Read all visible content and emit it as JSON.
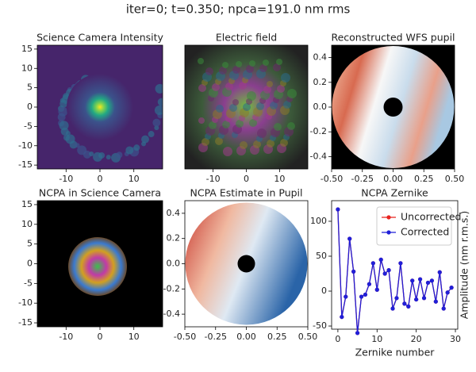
{
  "title": "iter=0; t=0.350; npca=191.0 nm rms",
  "chart_data": [
    {
      "type": "image",
      "title": "Science Camera Intensity",
      "xlim": [
        -18.5,
        18.5
      ],
      "ylim": [
        -16,
        16
      ],
      "xticks": [
        -10,
        0,
        10
      ],
      "yticks": [
        15,
        10,
        5,
        0,
        -5,
        -10,
        -15
      ]
    },
    {
      "type": "image",
      "title": "Electric field",
      "xlim": [
        -18.5,
        18.5
      ],
      "ylim": [
        -16,
        16
      ],
      "xticks": [
        -10,
        0,
        10
      ]
    },
    {
      "type": "image",
      "title": "Reconstructed WFS pupil",
      "xlim": [
        -0.5,
        0.5
      ],
      "ylim": [
        -0.5,
        0.5
      ],
      "xticks": [
        {
          "value": -0.5,
          "label": "-0.50"
        },
        {
          "value": -0.25,
          "label": "-0.25"
        },
        {
          "value": 0,
          "label": "0.00"
        },
        {
          "value": 0.25,
          "label": "0.25"
        },
        {
          "value": 0.5,
          "label": "0.50"
        }
      ],
      "yticks": [
        0.4,
        0.2,
        {
          "value": 0,
          "label": "0.0"
        },
        -0.2,
        -0.4
      ]
    },
    {
      "type": "image",
      "title": "NCPA in Science Camera",
      "xlim": [
        -18.5,
        18.5
      ],
      "ylim": [
        -16,
        16
      ],
      "xticks": [
        -10,
        0,
        10
      ],
      "yticks": [
        15,
        10,
        5,
        0,
        -5,
        -10,
        -15
      ]
    },
    {
      "type": "image",
      "title": "NCPA Estimate in Pupil",
      "xlim": [
        -0.5,
        0.5
      ],
      "ylim": [
        -0.5,
        0.5
      ],
      "xticks": [
        {
          "value": -0.5,
          "label": "-0.50"
        },
        {
          "value": -0.25,
          "label": "-0.25"
        },
        {
          "value": 0,
          "label": "0.00"
        },
        {
          "value": 0.25,
          "label": "0.25"
        },
        {
          "value": 0.5,
          "label": "0.50"
        }
      ],
      "yticks": [
        0.4,
        0.2,
        {
          "value": 0,
          "label": "0.0"
        },
        -0.2,
        -0.4
      ]
    },
    {
      "type": "line",
      "title": "NCPA Zernike",
      "x_label": "Zernike number",
      "y_label": "Amplitude (nm r.m.s.)",
      "xlim": [
        -1.6,
        30.6
      ],
      "ylim": [
        -54.5,
        129.5
      ],
      "xticks": [
        0,
        10,
        20,
        30
      ],
      "yticks": [
        -50,
        0,
        50,
        100
      ],
      "legend": "upper right",
      "x": [
        0,
        1,
        2,
        3,
        4,
        5,
        6,
        7,
        8,
        9,
        10,
        11,
        12,
        13,
        14,
        15,
        16,
        17,
        18,
        19,
        20,
        21,
        22,
        23,
        24,
        25,
        26,
        27,
        28,
        29
      ],
      "series": [
        {
          "name": "Uncorrected",
          "color": "#e8231f",
          "values": [
            117,
            -37,
            -8,
            75,
            28,
            -60,
            -8,
            -5,
            10,
            40,
            2,
            45,
            25,
            30,
            -25,
            -10,
            40,
            -18,
            -22,
            15,
            -12,
            17,
            -10,
            12,
            15,
            -15,
            27,
            -25,
            -2,
            5
          ]
        },
        {
          "name": "Corrected",
          "color": "#1f1fd8",
          "values": [
            117,
            -37,
            -8,
            75,
            28,
            -60,
            -8,
            -5,
            10,
            40,
            2,
            45,
            25,
            30,
            -25,
            -10,
            40,
            -18,
            -22,
            15,
            -12,
            17,
            -10,
            12,
            15,
            -15,
            27,
            -25,
            -2,
            5
          ]
        }
      ]
    }
  ]
}
